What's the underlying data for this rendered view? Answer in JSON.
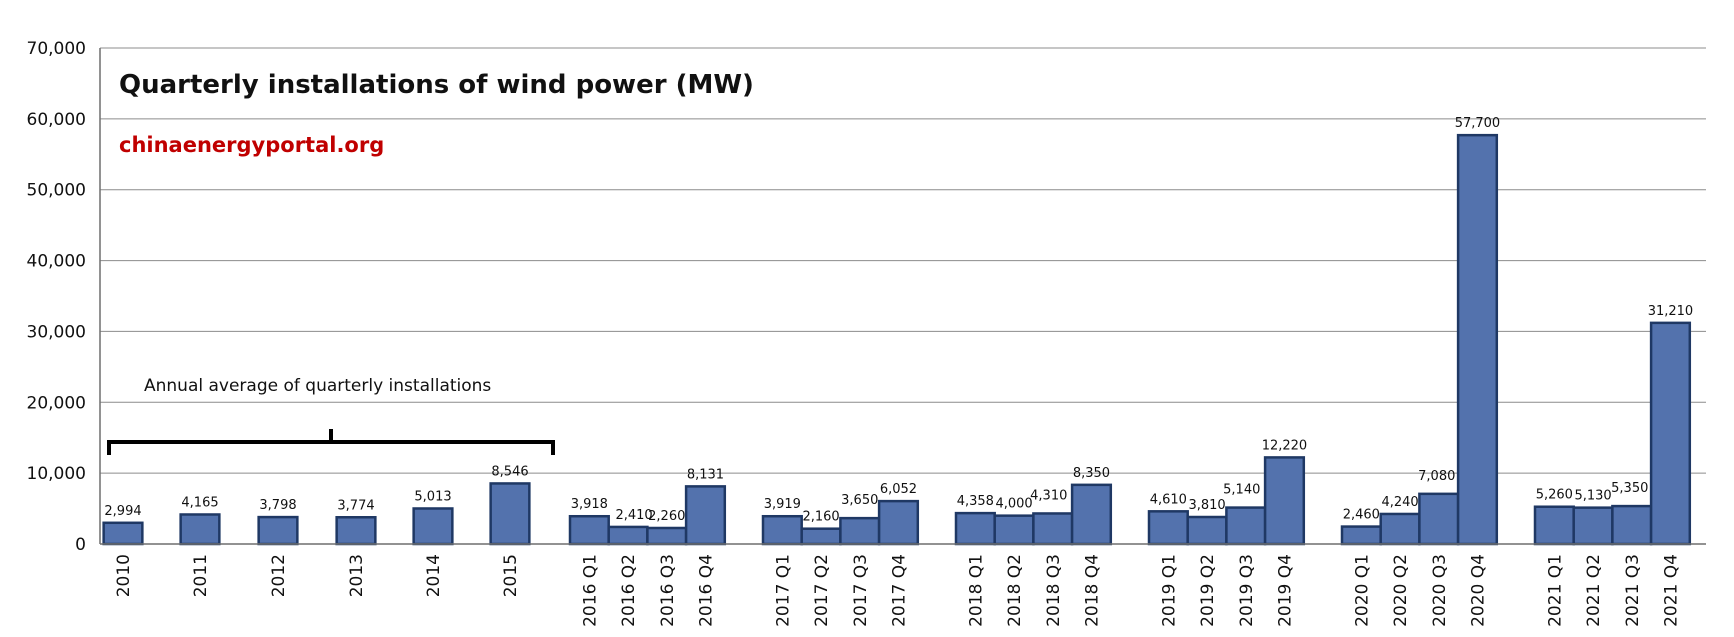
{
  "chart_data": {
    "type": "bar",
    "title": "Quarterly installations of wind power (MW)",
    "source": "chinaenergyportal.org",
    "annotation": "Annual average of quarterly installations",
    "ylim": [
      0,
      70000
    ],
    "yticks": [
      "0",
      "10,000",
      "20,000",
      "30,000",
      "40,000",
      "50,000",
      "60,000",
      "70,000"
    ],
    "grid": true,
    "colors": {
      "bar": "#5372AD",
      "bar_edge": "#1F3864",
      "source": "#C00000",
      "grid": "#8C8C8C"
    },
    "groups": [
      {
        "bars": [
          {
            "category": "2010",
            "value": 2994,
            "label": "2,994"
          },
          {
            "category": "2011",
            "value": 4165,
            "label": "4,165"
          },
          {
            "category": "2012",
            "value": 3798,
            "label": "3,798"
          },
          {
            "category": "2013",
            "value": 3774,
            "label": "3,774"
          },
          {
            "category": "2014",
            "value": 5013,
            "label": "5,013"
          },
          {
            "category": "2015",
            "value": 8546,
            "label": "8,546"
          }
        ]
      },
      {
        "bars": [
          {
            "category": "2016 Q1",
            "value": 3918,
            "label": "3,918"
          },
          {
            "category": "2016 Q2",
            "value": 2410,
            "label": "2,410"
          },
          {
            "category": "2016 Q3",
            "value": 2260,
            "label": "2,260"
          },
          {
            "category": "2016 Q4",
            "value": 8131,
            "label": "8,131"
          }
        ]
      },
      {
        "bars": [
          {
            "category": "2017 Q1",
            "value": 3919,
            "label": "3,919"
          },
          {
            "category": "2017 Q2",
            "value": 2160,
            "label": "2,160"
          },
          {
            "category": "2017 Q3",
            "value": 3650,
            "label": "3,650"
          },
          {
            "category": "2017 Q4",
            "value": 6052,
            "label": "6,052"
          }
        ]
      },
      {
        "bars": [
          {
            "category": "2018 Q1",
            "value": 4358,
            "label": "4,358"
          },
          {
            "category": "2018 Q2",
            "value": 4000,
            "label": "4,000"
          },
          {
            "category": "2018 Q3",
            "value": 4310,
            "label": "4,310"
          },
          {
            "category": "2018 Q4",
            "value": 8350,
            "label": "8,350"
          }
        ]
      },
      {
        "bars": [
          {
            "category": "2019 Q1",
            "value": 4610,
            "label": "4,610"
          },
          {
            "category": "2019 Q2",
            "value": 3810,
            "label": "3,810"
          },
          {
            "category": "2019 Q3",
            "value": 5140,
            "label": "5,140"
          },
          {
            "category": "2019 Q4",
            "value": 12220,
            "label": "12,220"
          }
        ]
      },
      {
        "bars": [
          {
            "category": "2020 Q1",
            "value": 2460,
            "label": "2,460"
          },
          {
            "category": "2020 Q2",
            "value": 4240,
            "label": "4,240"
          },
          {
            "category": "2020 Q3",
            "value": 7080,
            "label": "7,080"
          },
          {
            "category": "2020 Q4",
            "value": 57700,
            "label": "57,700"
          }
        ]
      },
      {
        "bars": [
          {
            "category": "2021 Q1",
            "value": 5260,
            "label": "5,260"
          },
          {
            "category": "2021 Q2",
            "value": 5130,
            "label": "5,130"
          },
          {
            "category": "2021 Q3",
            "value": 5350,
            "label": "5,350"
          },
          {
            "category": "2021 Q4",
            "value": 31210,
            "label": "31,210"
          }
        ]
      }
    ]
  }
}
